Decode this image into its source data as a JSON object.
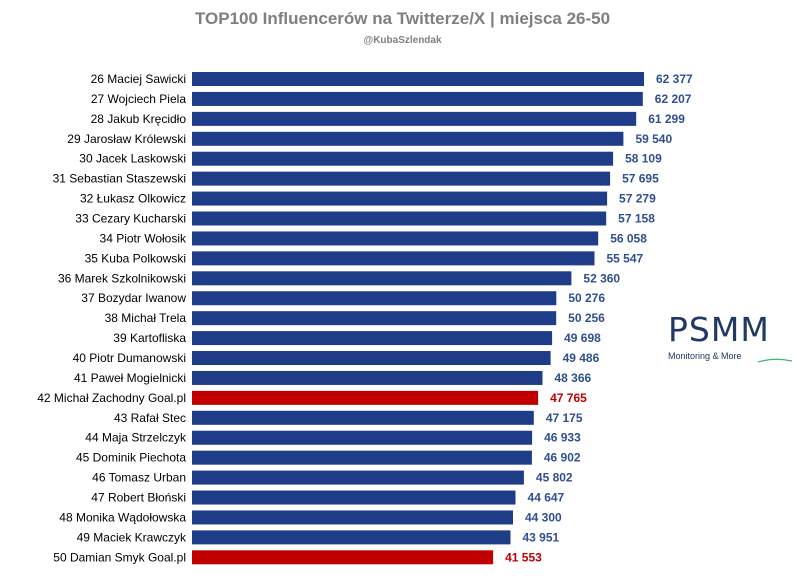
{
  "chart_data": {
    "type": "bar",
    "orientation": "horizontal",
    "title": "TOP100 Influencerów na Twitterze/X | miejsca 26-50",
    "subtitle": "@KubaSzlendak",
    "categories": [
      "26 Maciej Sawicki",
      "27 Wojciech Piela",
      "28 Jakub Kręcidło",
      "29 Jarosław Królewski",
      "30 Jacek Laskowski",
      "31 Sebastian Staszewski",
      "32 Łukasz Olkowicz",
      "33 Cezary Kucharski",
      "34 Piotr Wołosik",
      "35 Kuba Polkowski",
      "36 Marek Szkolnikowski",
      "37 Bozydar Iwanow",
      "38 Michał Trela",
      "39 Kartofliska",
      "40 Piotr Dumanowski",
      "41 Paweł Mogielnicki",
      "42 Michał Zachodny Goal.pl",
      "43 Rafał Stec",
      "44 Maja Strzelczyk",
      "45 Dominik Piechota",
      "46 Tomasz Urban",
      "47 Robert Błoński",
      "48 Monika Wądołowska",
      "49 Maciek Krawczyk",
      "50 Damian Smyk Goal.pl"
    ],
    "values": [
      62377,
      62207,
      61299,
      59540,
      58109,
      57695,
      57279,
      57158,
      56058,
      55547,
      52360,
      50276,
      50256,
      49698,
      49486,
      48366,
      47765,
      47175,
      46933,
      46902,
      45802,
      44647,
      44300,
      43951,
      41553
    ],
    "value_labels": [
      "62 377",
      "62 207",
      "61 299",
      "59 540",
      "58 109",
      "57 695",
      "57 279",
      "57 158",
      "56 058",
      "55 547",
      "52 360",
      "50 276",
      "50 256",
      "49 698",
      "49 486",
      "48 366",
      "47 765",
      "47 175",
      "46 933",
      "46 902",
      "45 802",
      "44 647",
      "44 300",
      "43 951",
      "41 553"
    ],
    "highlighted": [
      false,
      false,
      false,
      false,
      false,
      false,
      false,
      false,
      false,
      false,
      false,
      false,
      false,
      false,
      false,
      false,
      true,
      false,
      false,
      false,
      false,
      false,
      false,
      false,
      true
    ],
    "xlim": [
      0,
      62377
    ],
    "grid": false,
    "colors": {
      "bar": "#1f3c88",
      "highlight": "#c00000",
      "label": "#000000",
      "value": "#2f4f8f",
      "highlight_value": "#c00000"
    }
  },
  "brand": {
    "logo": "PSMM",
    "tagline": "Monitoring & More",
    "color": "#1f3864",
    "accent": "#3cb371"
  }
}
